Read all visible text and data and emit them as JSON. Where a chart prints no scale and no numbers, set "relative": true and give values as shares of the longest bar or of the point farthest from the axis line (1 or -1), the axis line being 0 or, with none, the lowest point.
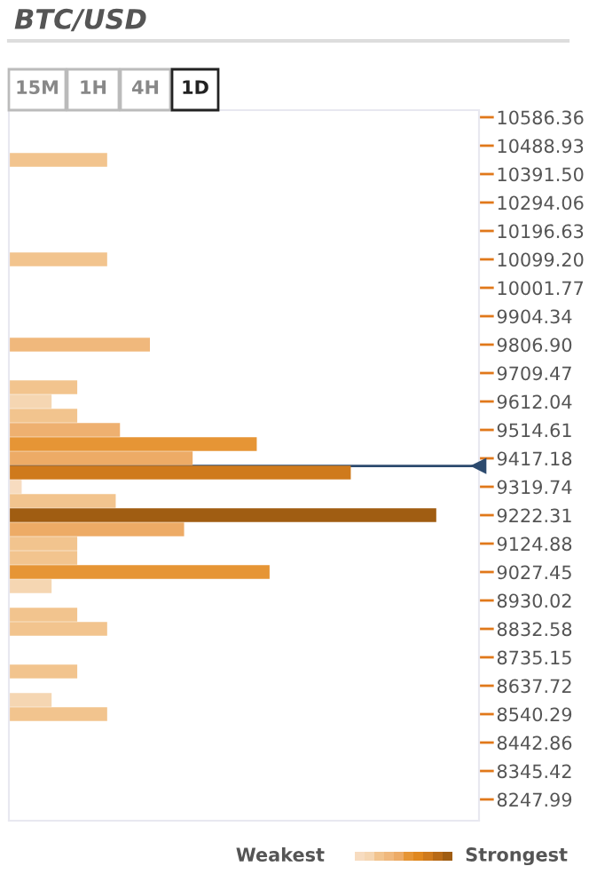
{
  "chart_data": {
    "type": "bar",
    "orientation": "horizontal",
    "relative": true,
    "title": "BTC/USD",
    "annotations": [
      "15M",
      "1H",
      "4H",
      "1D",
      "Weakest",
      "Strongest"
    ],
    "x": [
      10440.2,
      10099.2,
      9806.9,
      9660.8,
      9612.0,
      9563.3,
      9514.6,
      9465.9,
      9417.2,
      9368.5,
      9319.8,
      9271.0,
      9222.3,
      9173.6,
      9124.9,
      9076.2,
      9027.5,
      8978.8,
      8881.3,
      8832.6,
      8686.5,
      8589.0,
      8540.3
    ],
    "values": [
      0.23,
      0.23,
      0.33,
      0.16,
      0.1,
      0.16,
      0.26,
      0.58,
      0.43,
      0.8,
      0.03,
      0.25,
      1,
      0.41,
      0.16,
      0.16,
      0.61,
      0.1,
      0.16,
      0.23,
      0.16,
      0.1,
      0.23
    ],
    "colors": [
      "#f2c48e",
      "#f2c48e",
      "#f0b87c",
      "#f2c48e",
      "#f5d6b2",
      "#f2c48e",
      "#eeb070",
      "#e69535",
      "#edab66",
      "#cf7a1c",
      "#f7dcc0",
      "#f2c48e",
      "#a05d12",
      "#edab66",
      "#f2c48e",
      "#f2c48e",
      "#e69535",
      "#f5d6b2",
      "#f2c48e",
      "#f2c48e",
      "#f2c48e",
      "#f5d6b2",
      "#f2c48e"
    ],
    "ylim": [
      8175.0,
      10610.7
    ],
    "yticks": [
      10586.36,
      10488.93,
      {
        "value": 10391.5,
        "label": "10391.50"
      },
      10294.06,
      10196.63,
      {
        "value": 10099.2,
        "label": "10099.20"
      },
      10001.77,
      9904.34,
      {
        "value": 9806.9,
        "label": "9806.90"
      },
      9709.47,
      9612.04,
      9514.61,
      9417.18,
      9319.74,
      9222.31,
      9124.88,
      9027.45,
      8930.02,
      8832.58,
      8735.15,
      8637.72,
      8540.29,
      8442.86,
      8345.42,
      8247.99
    ],
    "ref_lines": [
      {
        "axis": "y",
        "value": 9391,
        "color": "#2c4a6e"
      }
    ],
    "grid": false
  }
}
